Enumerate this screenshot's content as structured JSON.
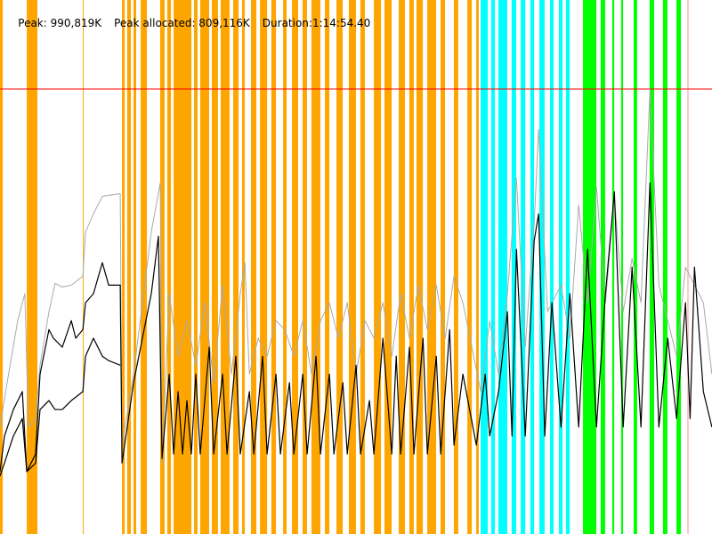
{
  "header": {
    "peak": "Peak: 990,819K",
    "peak_allocated": "Peak allocated: 809,116K",
    "duration": "Duration:1:14:54.40"
  },
  "chart_data": {
    "type": "line",
    "title": "",
    "x_unit": "seconds",
    "y_unit": "K",
    "xlim": [
      0,
      4494.4
    ],
    "peak_line": 990819,
    "grid": false,
    "colors": {
      "band_orange": "#FFA500",
      "band_cyan": "#00FFFF",
      "band_green": "#00FF00",
      "band_pink": "#FFC8C8",
      "peak_line": "#FF0000",
      "heap_series": "#AAAAAA",
      "used_series": "#000000"
    },
    "bands": {
      "orange": [
        [
          0,
          17
        ],
        [
          169,
          236
        ],
        [
          523,
          528
        ],
        [
          770,
          787
        ],
        [
          803,
          826
        ],
        [
          843,
          860
        ],
        [
          888,
          927
        ],
        [
          1011,
          1039
        ],
        [
          1056,
          1079
        ],
        [
          1096,
          1208
        ],
        [
          1225,
          1247
        ],
        [
          1264,
          1320
        ],
        [
          1337,
          1376
        ],
        [
          1393,
          1449
        ],
        [
          1472,
          1506
        ],
        [
          1528,
          1545
        ],
        [
          1584,
          1618
        ],
        [
          1641,
          1686
        ],
        [
          1713,
          1742
        ],
        [
          1787,
          1809
        ],
        [
          1843,
          1882
        ],
        [
          1910,
          1938
        ],
        [
          1966,
          2022
        ],
        [
          2051,
          2079
        ],
        [
          2124,
          2163
        ],
        [
          2202,
          2247
        ],
        [
          2275,
          2303
        ],
        [
          2360,
          2405
        ],
        [
          2427,
          2472
        ],
        [
          2517,
          2556
        ],
        [
          2584,
          2612
        ],
        [
          2629,
          2669
        ],
        [
          2697,
          2753
        ],
        [
          2781,
          2809
        ],
        [
          2865,
          2893
        ],
        [
          2950,
          2978
        ],
        [
          3006,
          3022
        ]
      ],
      "cyan": [
        [
          3034,
          3079
        ],
        [
          3101,
          3124
        ],
        [
          3146,
          3202
        ],
        [
          3230,
          3258
        ],
        [
          3287,
          3315
        ],
        [
          3348,
          3371
        ],
        [
          3405,
          3438
        ],
        [
          3472,
          3494
        ],
        [
          3528,
          3551
        ],
        [
          3573,
          3596
        ]
      ],
      "green": [
        [
          3680,
          3764
        ],
        [
          3792,
          3820
        ],
        [
          3865,
          3877
        ],
        [
          3921,
          3933
        ],
        [
          4000,
          4022
        ],
        [
          4101,
          4129
        ],
        [
          4185,
          4213
        ],
        [
          4270,
          4298
        ]
      ],
      "pink": [
        [
          4337,
          4349
        ]
      ]
    },
    "series": [
      {
        "key": "heap",
        "x": [
          0,
          45,
          112,
          157,
          180,
          225,
          253,
          309,
          348,
          393,
          450,
          523,
          540,
          590,
          646,
          759,
          770,
          843,
          955,
          1012,
          1023,
          1068,
          1124,
          1180,
          1236,
          1293,
          1349,
          1405,
          1461,
          1517,
          1546,
          1574,
          1630,
          1686,
          1742,
          1798,
          1855,
          1911,
          1967,
          2023,
          2079,
          2136,
          2192,
          2248,
          2304,
          2360,
          2417,
          2473,
          2529,
          2585,
          2641,
          2698,
          2754,
          2810,
          2866,
          2922,
          3035,
          3091,
          3147,
          3203,
          3260,
          3316,
          3372,
          3400,
          3456,
          3541,
          3597,
          3653,
          3709,
          3765,
          3822,
          3878,
          3934,
          3990,
          4046,
          4103,
          4159,
          4271,
          4327,
          4384,
          4440,
          4494
        ],
        "y": [
          238000,
          337000,
          475000,
          535000,
          238000,
          257000,
          376000,
          495000,
          558000,
          550000,
          554000,
          574000,
          673000,
          713000,
          752000,
          758000,
          198000,
          356000,
          673000,
          782000,
          158000,
          535000,
          396000,
          475000,
          376000,
          515000,
          337000,
          554000,
          356000,
          535000,
          604000,
          356000,
          436000,
          396000,
          475000,
          455000,
          396000,
          475000,
          356000,
          475000,
          515000,
          436000,
          515000,
          356000,
          475000,
          436000,
          515000,
          396000,
          535000,
          436000,
          554000,
          455000,
          554000,
          436000,
          574000,
          515000,
          317000,
          475000,
          356000,
          535000,
          792000,
          416000,
          693000,
          901000,
          495000,
          554000,
          436000,
          733000,
          515000,
          772000,
          515000,
          752000,
          495000,
          614000,
          515000,
          990000,
          554000,
          396000,
          594000,
          554000,
          515000,
          356000
        ]
      },
      {
        "key": "used",
        "x": [
          0,
          28,
          84,
          141,
          169,
          225,
          253,
          309,
          337,
          393,
          450,
          478,
          523,
          540,
          590,
          646,
          686,
          759,
          770,
          843,
          899,
          955,
          1000,
          1023,
          1068,
          1096,
          1124,
          1152,
          1180,
          1208,
          1236,
          1264,
          1321,
          1349,
          1405,
          1433,
          1489,
          1517,
          1574,
          1602,
          1658,
          1686,
          1742,
          1770,
          1827,
          1855,
          1911,
          1939,
          1995,
          2023,
          2079,
          2108,
          2164,
          2192,
          2248,
          2276,
          2332,
          2360,
          2417,
          2473,
          2501,
          2529,
          2585,
          2613,
          2670,
          2698,
          2754,
          2782,
          2838,
          2866,
          2922,
          3007,
          3063,
          3091,
          3147,
          3203,
          3232,
          3260,
          3316,
          3372,
          3400,
          3439,
          3484,
          3541,
          3597,
          3653,
          3709,
          3765,
          3822,
          3878,
          3934,
          3990,
          4046,
          4103,
          4159,
          4215,
          4271,
          4327,
          4356,
          4384,
          4440,
          4494
        ],
        "y": [
          139000,
          218000,
          277000,
          317000,
          139000,
          178000,
          356000,
          455000,
          436000,
          416000,
          475000,
          436000,
          455000,
          515000,
          535000,
          604000,
          554000,
          554000,
          158000,
          337000,
          436000,
          535000,
          663000,
          168000,
          356000,
          178000,
          317000,
          178000,
          297000,
          178000,
          356000,
          178000,
          416000,
          178000,
          356000,
          178000,
          396000,
          178000,
          317000,
          178000,
          396000,
          178000,
          356000,
          178000,
          337000,
          178000,
          356000,
          178000,
          396000,
          178000,
          356000,
          178000,
          337000,
          178000,
          376000,
          178000,
          297000,
          178000,
          436000,
          178000,
          396000,
          178000,
          416000,
          178000,
          436000,
          178000,
          396000,
          178000,
          455000,
          198000,
          356000,
          198000,
          356000,
          218000,
          317000,
          495000,
          218000,
          634000,
          218000,
          653000,
          713000,
          218000,
          515000,
          238000,
          535000,
          238000,
          634000,
          238000,
          535000,
          762000,
          238000,
          594000,
          238000,
          782000,
          238000,
          436000,
          257000,
          515000,
          257000,
          594000,
          317000,
          238000
        ]
      },
      {
        "key": "used_low",
        "x": [
          0,
          28,
          84,
          141,
          169,
          225,
          253,
          309,
          348,
          393,
          450,
          523,
          540,
          590,
          646,
          686,
          759
        ],
        "y": [
          129000,
          158000,
          218000,
          257000,
          139000,
          158000,
          277000,
          297000,
          277000,
          277000,
          297000,
          317000,
          396000,
          436000,
          396000,
          386000,
          376000
        ]
      }
    ]
  }
}
